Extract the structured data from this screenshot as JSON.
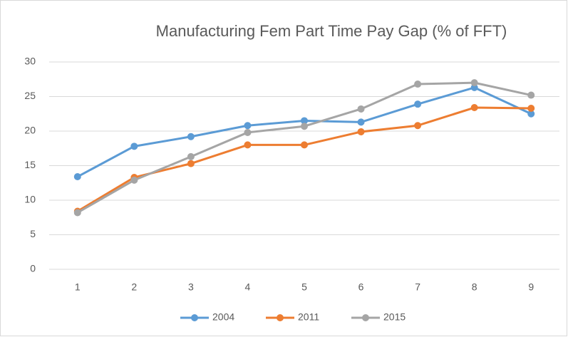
{
  "chart_data": {
    "type": "line",
    "title": "Manufacturing Fem Part Time Pay Gap (% of FFT)",
    "categories": [
      "1",
      "2",
      "3",
      "4",
      "5",
      "6",
      "7",
      "8",
      "9"
    ],
    "series": [
      {
        "name": "2004",
        "color": "#5b9bd5",
        "values": [
          13.4,
          17.8,
          19.2,
          20.8,
          21.5,
          21.3,
          23.9,
          26.3,
          22.5
        ]
      },
      {
        "name": "2011",
        "color": "#ed7d31",
        "values": [
          8.4,
          13.3,
          15.3,
          18.0,
          18.0,
          19.9,
          20.8,
          23.4,
          23.3
        ]
      },
      {
        "name": "2015",
        "color": "#a5a5a5",
        "values": [
          8.2,
          12.9,
          16.3,
          19.8,
          20.7,
          23.2,
          26.8,
          27.0,
          25.2
        ]
      }
    ],
    "ylim": [
      0,
      30
    ],
    "yticks": [
      0,
      5,
      10,
      15,
      20,
      25,
      30
    ],
    "grid": true,
    "legend": "bottom"
  }
}
